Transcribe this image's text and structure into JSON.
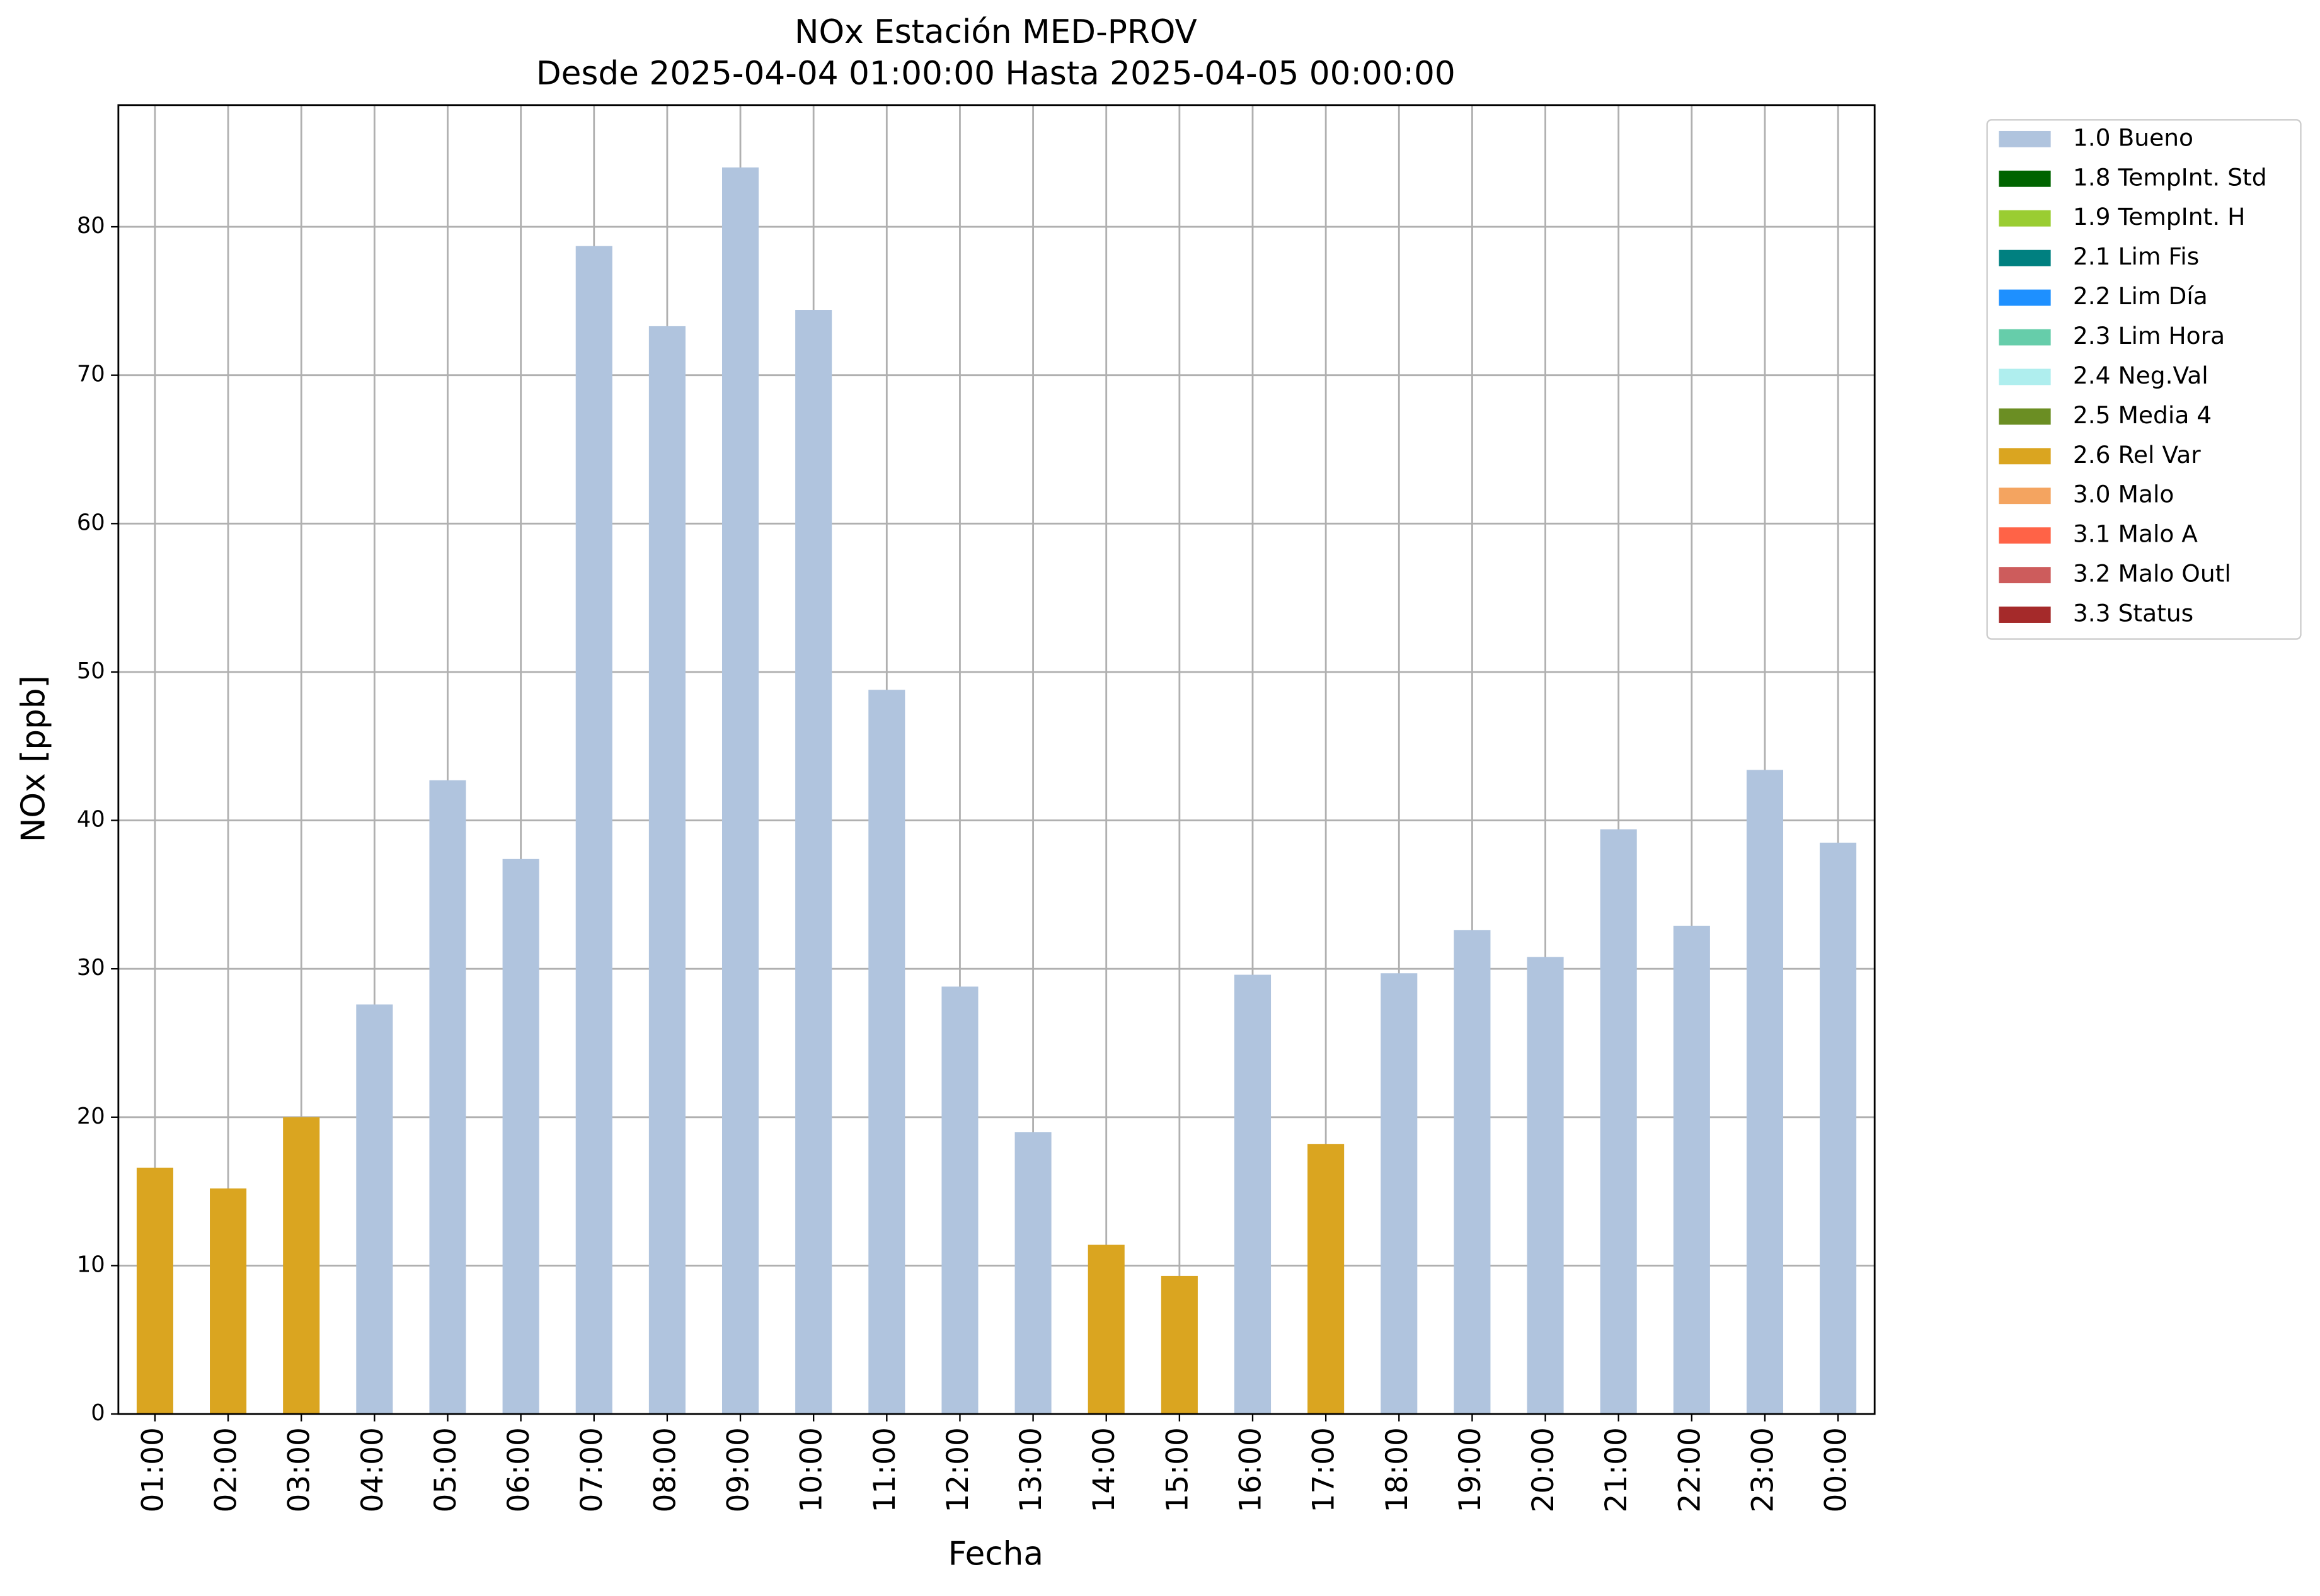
{
  "chart_data": {
    "type": "bar",
    "title": "NOx Estación MED-PROV",
    "subtitle": "Desde 2025-04-04 01:00:00 Hasta 2025-04-05 00:00:00",
    "x_label": "Fecha",
    "y_label": "NOx [ppb]",
    "categories": [
      "01:00",
      "02:00",
      "03:00",
      "04:00",
      "05:00",
      "06:00",
      "07:00",
      "08:00",
      "09:00",
      "10:00",
      "11:00",
      "12:00",
      "13:00",
      "14:00",
      "15:00",
      "16:00",
      "17:00",
      "18:00",
      "19:00",
      "20:00",
      "21:00",
      "22:00",
      "23:00",
      "00:00"
    ],
    "series": [
      {
        "name": "1.0 Bueno",
        "color": "#b0c4de",
        "values": [
          null,
          null,
          null,
          27.6,
          42.7,
          37.4,
          78.7,
          73.3,
          84.0,
          74.4,
          48.8,
          28.8,
          19.0,
          null,
          null,
          29.6,
          null,
          29.7,
          32.6,
          30.8,
          39.4,
          32.9,
          43.4,
          38.5
        ]
      },
      {
        "name": "1.8 TempInt. Std",
        "color": "#006400",
        "values": [
          null,
          null,
          null,
          null,
          null,
          null,
          null,
          null,
          null,
          null,
          null,
          null,
          null,
          null,
          null,
          null,
          null,
          null,
          null,
          null,
          null,
          null,
          null,
          null
        ]
      },
      {
        "name": "1.9 TempInt. H",
        "color": "#9acd32",
        "values": [
          null,
          null,
          null,
          null,
          null,
          null,
          null,
          null,
          null,
          null,
          null,
          null,
          null,
          null,
          null,
          null,
          null,
          null,
          null,
          null,
          null,
          null,
          null,
          null
        ]
      },
      {
        "name": "2.1 Lim Fis",
        "color": "#008080",
        "values": [
          null,
          null,
          null,
          null,
          null,
          null,
          null,
          null,
          null,
          null,
          null,
          null,
          null,
          null,
          null,
          null,
          null,
          null,
          null,
          null,
          null,
          null,
          null,
          null
        ]
      },
      {
        "name": "2.2 Lim Día",
        "color": "#1e90ff",
        "values": [
          null,
          null,
          null,
          null,
          null,
          null,
          null,
          null,
          null,
          null,
          null,
          null,
          null,
          null,
          null,
          null,
          null,
          null,
          null,
          null,
          null,
          null,
          null,
          null
        ]
      },
      {
        "name": "2.3 Lim Hora",
        "color": "#66cdaa",
        "values": [
          null,
          null,
          null,
          null,
          null,
          null,
          null,
          null,
          null,
          null,
          null,
          null,
          null,
          null,
          null,
          null,
          null,
          null,
          null,
          null,
          null,
          null,
          null,
          null
        ]
      },
      {
        "name": "2.4 Neg.Val",
        "color": "#afeeee",
        "values": [
          null,
          null,
          null,
          null,
          null,
          null,
          null,
          null,
          null,
          null,
          null,
          null,
          null,
          null,
          null,
          null,
          null,
          null,
          null,
          null,
          null,
          null,
          null,
          null
        ]
      },
      {
        "name": "2.5 Media 4",
        "color": "#6b8e23",
        "values": [
          null,
          null,
          null,
          null,
          null,
          null,
          null,
          null,
          null,
          null,
          null,
          null,
          null,
          null,
          null,
          null,
          null,
          null,
          null,
          null,
          null,
          null,
          null,
          null
        ]
      },
      {
        "name": "2.6 Rel Var",
        "color": "#daa520",
        "values": [
          16.6,
          15.2,
          20.0,
          null,
          null,
          null,
          null,
          null,
          null,
          null,
          null,
          null,
          null,
          11.4,
          9.3,
          null,
          18.2,
          null,
          null,
          null,
          null,
          null,
          null,
          null
        ]
      },
      {
        "name": "3.0 Malo",
        "color": "#f4a460",
        "values": [
          null,
          null,
          null,
          null,
          null,
          null,
          null,
          null,
          null,
          null,
          null,
          null,
          null,
          null,
          null,
          null,
          null,
          null,
          null,
          null,
          null,
          null,
          null,
          null
        ]
      },
      {
        "name": "3.1 Malo A",
        "color": "#ff6347",
        "values": [
          null,
          null,
          null,
          null,
          null,
          null,
          null,
          null,
          null,
          null,
          null,
          null,
          null,
          null,
          null,
          null,
          null,
          null,
          null,
          null,
          null,
          null,
          null,
          null
        ]
      },
      {
        "name": "3.2 Malo Outl",
        "color": "#cd5c5c",
        "values": [
          null,
          null,
          null,
          null,
          null,
          null,
          null,
          null,
          null,
          null,
          null,
          null,
          null,
          null,
          null,
          null,
          null,
          null,
          null,
          null,
          null,
          null,
          null,
          null
        ]
      },
      {
        "name": "3.3 Status",
        "color": "#a52a2a",
        "values": [
          null,
          null,
          null,
          null,
          null,
          null,
          null,
          null,
          null,
          null,
          null,
          null,
          null,
          null,
          null,
          null,
          null,
          null,
          null,
          null,
          null,
          null,
          null,
          null
        ]
      }
    ],
    "ylim": [
      0,
      88.2
    ],
    "yticks": [
      0,
      10,
      20,
      30,
      40,
      50,
      60,
      70,
      80
    ],
    "grid": true,
    "legend": "outside-right"
  }
}
